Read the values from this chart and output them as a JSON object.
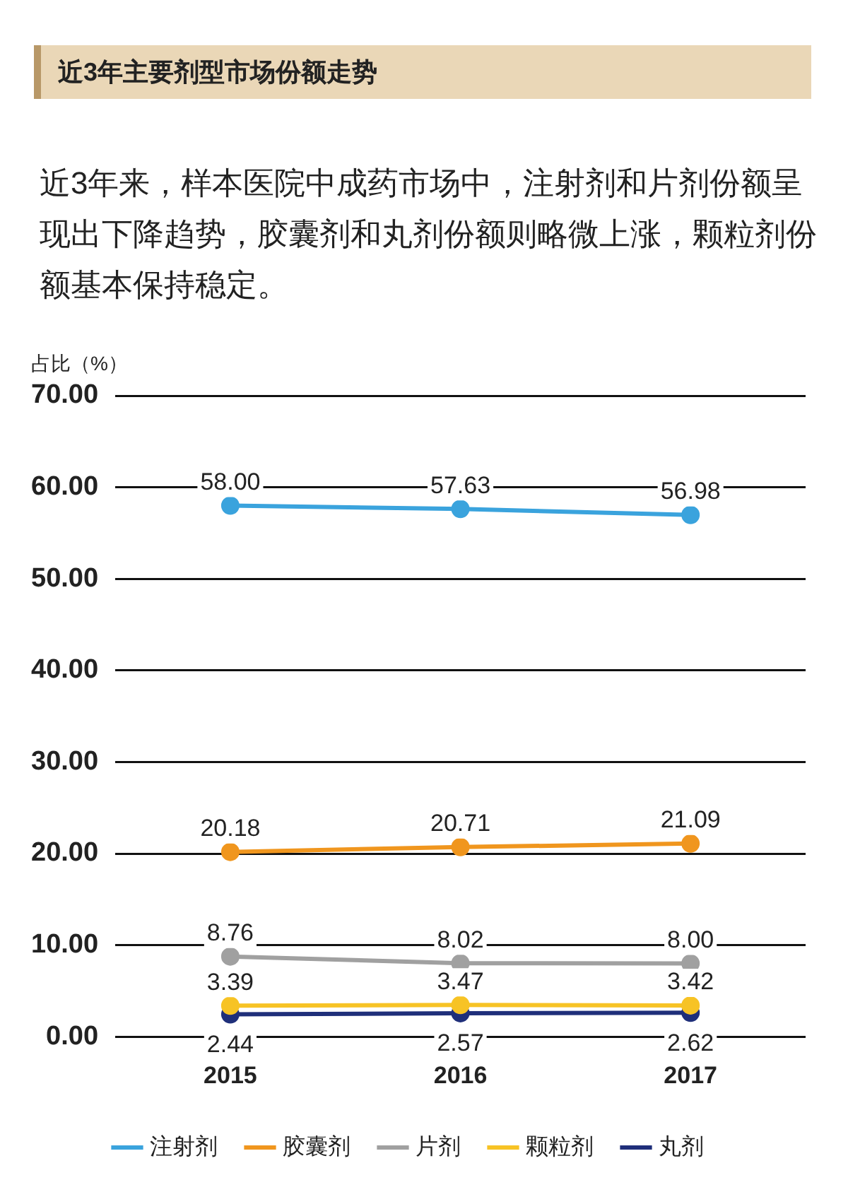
{
  "chart_data": {
    "type": "line",
    "title": "近3年主要剂型市场份额走势",
    "subtitle": "近3年来，样本医院中成药市场中，注射剂和片剂份额呈现出下降趋势，胶囊剂和丸剂份额则略微上涨，颗粒剂份额基本保持稳定。",
    "ylabel": "占比（%）",
    "categories": [
      "2015",
      "2016",
      "2017"
    ],
    "series": [
      {
        "name": "注射剂",
        "color": "#3aa3dd",
        "values": [
          58.0,
          57.63,
          56.98
        ],
        "value_labels": [
          "58.00",
          "57.63",
          "56.98"
        ]
      },
      {
        "name": "胶囊剂",
        "color": "#f0961e",
        "values": [
          20.18,
          20.71,
          21.09
        ],
        "value_labels": [
          "20.18",
          "20.71",
          "21.09"
        ]
      },
      {
        "name": "片剂",
        "color": "#a0a0a0",
        "values": [
          8.76,
          8.02,
          8.0
        ],
        "value_labels": [
          "8.76",
          "8.02",
          "8.00"
        ]
      },
      {
        "name": "颗粒剂",
        "color": "#f7c325",
        "values": [
          3.39,
          3.47,
          3.42
        ],
        "value_labels": [
          "3.39",
          "3.47",
          "3.42"
        ]
      },
      {
        "name": "丸剂",
        "color": "#1f2f7a",
        "values": [
          2.44,
          2.57,
          2.62
        ],
        "value_labels": [
          "2.44",
          "2.57",
          "2.62"
        ]
      }
    ],
    "ylim": [
      0,
      70
    ],
    "yticks": [
      {
        "value": 0,
        "label": "0.00"
      },
      {
        "value": 10,
        "label": "10.00"
      },
      {
        "value": 20,
        "label": "20.00"
      },
      {
        "value": 30,
        "label": "30.00"
      },
      {
        "value": 40,
        "label": "40.00"
      },
      {
        "value": 50,
        "label": "50.00"
      },
      {
        "value": 60,
        "label": "60.00"
      },
      {
        "value": 70,
        "label": "70.00"
      }
    ],
    "grid": "y",
    "legend": "bottom",
    "marker": "circle",
    "line_style": "solid"
  }
}
